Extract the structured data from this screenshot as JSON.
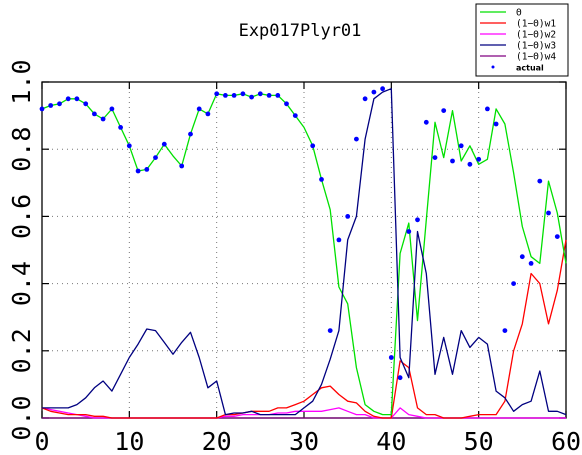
{
  "chart_data": {
    "type": "line",
    "title": "Exp017Plyr01",
    "xlim": [
      0,
      60
    ],
    "ylim": [
      0,
      1
    ],
    "x_ticks": [
      "0",
      "10",
      "20",
      "30",
      "40",
      "50",
      "60"
    ],
    "y_ticks": [
      "0.0",
      "0.2",
      "0.4",
      "0.6",
      "0.8",
      "1.0"
    ],
    "grid": true,
    "legend_placement": "top-right",
    "x": [
      0,
      1,
      2,
      3,
      4,
      5,
      6,
      7,
      8,
      9,
      10,
      11,
      12,
      13,
      14,
      15,
      16,
      17,
      18,
      19,
      20,
      21,
      22,
      23,
      24,
      25,
      26,
      27,
      28,
      29,
      30,
      31,
      32,
      33,
      34,
      35,
      36,
      37,
      38,
      39,
      40,
      41,
      42,
      43,
      44,
      45,
      46,
      47,
      48,
      49,
      50,
      51,
      52,
      53,
      54,
      55,
      56,
      57,
      58,
      59,
      60
    ],
    "series": [
      {
        "name": "Θ",
        "color": "#00e000",
        "values": [
          0.92,
          0.93,
          0.935,
          0.95,
          0.95,
          0.935,
          0.905,
          0.89,
          0.92,
          0.865,
          0.81,
          0.735,
          0.74,
          0.775,
          0.815,
          0.78,
          0.75,
          0.845,
          0.92,
          0.905,
          0.965,
          0.96,
          0.96,
          0.965,
          0.955,
          0.965,
          0.96,
          0.96,
          0.935,
          0.9,
          0.865,
          0.81,
          0.71,
          0.62,
          0.39,
          0.34,
          0.15,
          0.04,
          0.02,
          0.01,
          0.01,
          0.49,
          0.58,
          0.29,
          0.59,
          0.88,
          0.775,
          0.915,
          0.765,
          0.81,
          0.755,
          0.77,
          0.92,
          0.875,
          0.73,
          0.57,
          0.48,
          0.46,
          0.705,
          0.61,
          0.46
        ]
      },
      {
        "name": "(1−Θ)w1",
        "color": "#ff0000",
        "values": [
          0.03,
          0.02,
          0.015,
          0.01,
          0.01,
          0.01,
          0.005,
          0.005,
          0,
          0,
          0,
          0,
          0,
          0,
          0,
          0,
          0,
          0,
          0,
          0,
          0,
          0.01,
          0.01,
          0.015,
          0.02,
          0.02,
          0.02,
          0.03,
          0.03,
          0.04,
          0.05,
          0.07,
          0.09,
          0.095,
          0.07,
          0.05,
          0.045,
          0.02,
          0.005,
          0,
          0,
          0.17,
          0.15,
          0.03,
          0.01,
          0.01,
          0,
          0,
          0,
          0.005,
          0.01,
          0.01,
          0.01,
          0.05,
          0.2,
          0.28,
          0.43,
          0.4,
          0.28,
          0.38,
          0.53
        ]
      },
      {
        "name": "(1−Θ)w2",
        "color": "#ff00ff",
        "values": [
          0.03,
          0.025,
          0.02,
          0.015,
          0.01,
          0.005,
          0,
          0,
          0,
          0,
          0,
          0,
          0,
          0,
          0,
          0,
          0,
          0,
          0,
          0,
          0,
          0.005,
          0.005,
          0.01,
          0.01,
          0.01,
          0.01,
          0.015,
          0.015,
          0.02,
          0.02,
          0.02,
          0.02,
          0.025,
          0.03,
          0.02,
          0.01,
          0.01,
          0,
          0,
          0,
          0.03,
          0.01,
          0.005,
          0,
          0,
          0,
          0,
          0,
          0,
          0,
          0,
          0,
          0,
          0,
          0,
          0,
          0,
          0,
          0,
          0
        ]
      },
      {
        "name": "(1−Θ)w3",
        "color": "#000080",
        "values": [
          0.03,
          0.03,
          0.03,
          0.03,
          0.04,
          0.06,
          0.09,
          0.11,
          0.08,
          0.13,
          0.18,
          0.22,
          0.265,
          0.26,
          0.225,
          0.19,
          0.225,
          0.255,
          0.18,
          0.09,
          0.11,
          0.01,
          0.015,
          0.015,
          0.02,
          0.01,
          0.01,
          0.01,
          0.01,
          0.01,
          0.03,
          0.05,
          0.1,
          0.175,
          0.26,
          0.53,
          0.6,
          0.83,
          0.95,
          0.97,
          0.98,
          0.18,
          0.12,
          0.555,
          0.43,
          0.13,
          0.24,
          0.13,
          0.26,
          0.21,
          0.24,
          0.22,
          0.08,
          0.06,
          0.02,
          0.04,
          0.05,
          0.14,
          0.02,
          0.02,
          0.01
        ]
      },
      {
        "name": "(1−Θ)w4",
        "color": "#800080",
        "values": [
          0,
          0,
          0,
          0,
          0,
          0,
          0,
          0,
          0,
          0,
          0,
          0,
          0,
          0,
          0,
          0,
          0,
          0,
          0,
          0,
          0,
          0,
          0,
          0,
          0,
          0,
          0,
          0,
          0,
          0,
          0,
          0,
          0,
          0,
          0,
          0,
          0,
          0,
          0,
          0,
          0,
          0,
          0,
          0,
          0,
          0,
          0,
          0,
          0,
          0,
          0,
          0,
          0,
          0,
          0,
          0,
          0,
          0,
          0,
          0,
          0
        ]
      }
    ],
    "actual": {
      "name": "actual",
      "color": "#0000ff",
      "points": [
        [
          0,
          0.92
        ],
        [
          1,
          0.93
        ],
        [
          2,
          0.935
        ],
        [
          3,
          0.95
        ],
        [
          4,
          0.95
        ],
        [
          5,
          0.935
        ],
        [
          6,
          0.905
        ],
        [
          7,
          0.89
        ],
        [
          8,
          0.92
        ],
        [
          9,
          0.865
        ],
        [
          10,
          0.81
        ],
        [
          11,
          0.735
        ],
        [
          12,
          0.74
        ],
        [
          13,
          0.775
        ],
        [
          14,
          0.815
        ],
        [
          16,
          0.75
        ],
        [
          17,
          0.845
        ],
        [
          18,
          0.92
        ],
        [
          19,
          0.905
        ],
        [
          20,
          0.965
        ],
        [
          21,
          0.96
        ],
        [
          22,
          0.96
        ],
        [
          23,
          0.965
        ],
        [
          24,
          0.955
        ],
        [
          25,
          0.965
        ],
        [
          26,
          0.96
        ],
        [
          27,
          0.96
        ],
        [
          28,
          0.935
        ],
        [
          29,
          0.9
        ],
        [
          31,
          0.81
        ],
        [
          32,
          0.71
        ],
        [
          33,
          0.26
        ],
        [
          34,
          0.53
        ],
        [
          35,
          0.6
        ],
        [
          36,
          0.83
        ],
        [
          37,
          0.95
        ],
        [
          38,
          0.97
        ],
        [
          39,
          0.98
        ],
        [
          40,
          0.18
        ],
        [
          41,
          0.12
        ],
        [
          42,
          0.555
        ],
        [
          43,
          0.59
        ],
        [
          44,
          0.88
        ],
        [
          45,
          0.775
        ],
        [
          46,
          0.915
        ],
        [
          47,
          0.765
        ],
        [
          48,
          0.81
        ],
        [
          49,
          0.755
        ],
        [
          50,
          0.77
        ],
        [
          51,
          0.92
        ],
        [
          52,
          0.875
        ],
        [
          53,
          0.26
        ],
        [
          54,
          0.4
        ],
        [
          55,
          0.48
        ],
        [
          56,
          0.46
        ],
        [
          57,
          0.705
        ],
        [
          58,
          0.61
        ],
        [
          59,
          0.54
        ]
      ]
    }
  },
  "legend": {
    "entries": [
      {
        "label": "Θ",
        "color": "#00e000",
        "marker": "line"
      },
      {
        "label": "(1−Θ)w1",
        "color": "#ff0000",
        "marker": "line"
      },
      {
        "label": "(1−Θ)w2",
        "color": "#ff00ff",
        "marker": "line"
      },
      {
        "label": "(1−Θ)w3",
        "color": "#000080",
        "marker": "line"
      },
      {
        "label": "(1−Θ)w4",
        "color": "#800080",
        "marker": "line"
      },
      {
        "label": "actual",
        "color": "#0000ff",
        "marker": "dot"
      }
    ]
  }
}
